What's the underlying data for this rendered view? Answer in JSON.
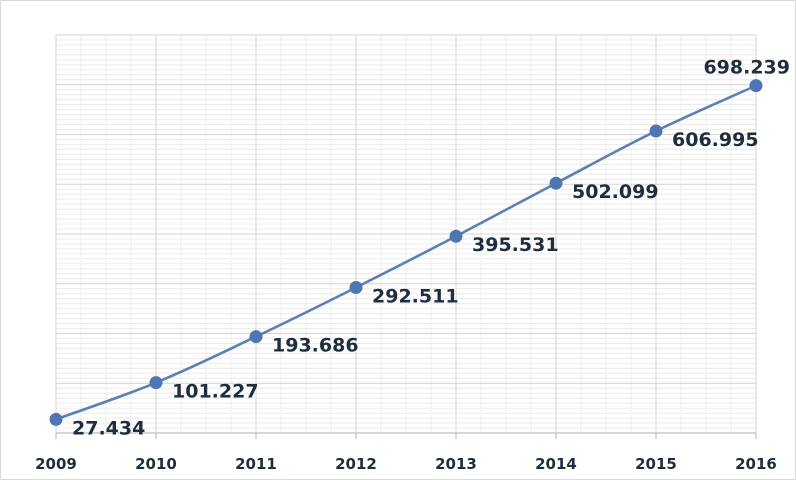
{
  "chart_data": {
    "type": "line",
    "title": "",
    "xlabel": "",
    "ylabel": "",
    "categories": [
      "2009",
      "2010",
      "2011",
      "2012",
      "2013",
      "2014",
      "2015",
      "2016"
    ],
    "series": [
      {
        "values": [
          27.434,
          101.227,
          193.686,
          292.511,
          395.531,
          502.099,
          606.995,
          698.239
        ],
        "data_labels": [
          "27.434",
          "101.227",
          "193.686",
          "292.511",
          "395.531",
          "502.099",
          "606.995",
          "698.239"
        ]
      }
    ],
    "ylim": [
      0,
      800
    ],
    "grid": true,
    "legend": "none",
    "colors": {
      "line": "#5b80b8",
      "marker": "#4f76b3",
      "text": "#1f2d3d",
      "grid": "#d4d4d4"
    }
  }
}
